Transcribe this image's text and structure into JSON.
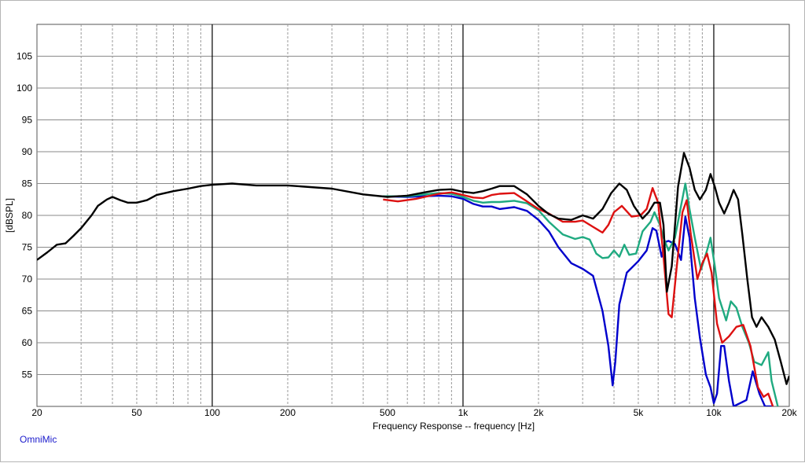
{
  "brand": {
    "label": "OmniMic",
    "color": "#1a1acc"
  },
  "chart_data": {
    "type": "line",
    "title": "",
    "xlabel": "Frequency Response -- frequency [Hz]",
    "ylabel": "[dBSPL]",
    "xscale": "log",
    "xlim": [
      20,
      20000
    ],
    "ylim": [
      50,
      110
    ],
    "grid": true,
    "legend": "none",
    "x_ticks": [
      {
        "value": 20,
        "label": "20"
      },
      {
        "value": 50,
        "label": "50"
      },
      {
        "value": 100,
        "label": "100"
      },
      {
        "value": 200,
        "label": "200"
      },
      {
        "value": 500,
        "label": "500"
      },
      {
        "value": 1000,
        "label": "1k"
      },
      {
        "value": 2000,
        "label": "2k"
      },
      {
        "value": 5000,
        "label": "5k"
      },
      {
        "value": 10000,
        "label": "10k"
      },
      {
        "value": 20000,
        "label": "20k"
      }
    ],
    "y_ticks": [
      55,
      60,
      65,
      70,
      75,
      80,
      85,
      90,
      95,
      100,
      105
    ],
    "series": [
      {
        "color": "#0000cc",
        "points": [
          [
            480,
            83.0
          ],
          [
            600,
            82.9
          ],
          [
            700,
            83.0
          ],
          [
            800,
            83.1
          ],
          [
            900,
            83.0
          ],
          [
            1000,
            82.6
          ],
          [
            1100,
            81.8
          ],
          [
            1200,
            81.4
          ],
          [
            1300,
            81.4
          ],
          [
            1400,
            81.0
          ],
          [
            1600,
            81.3
          ],
          [
            1800,
            80.7
          ],
          [
            2000,
            79.3
          ],
          [
            2200,
            77.5
          ],
          [
            2400,
            75.0
          ],
          [
            2700,
            72.5
          ],
          [
            3000,
            71.6
          ],
          [
            3300,
            70.5
          ],
          [
            3600,
            65.0
          ],
          [
            3800,
            59.5
          ],
          [
            3950,
            53.3
          ],
          [
            4050,
            57.0
          ],
          [
            4200,
            66.0
          ],
          [
            4500,
            71.0
          ],
          [
            5000,
            72.8
          ],
          [
            5400,
            74.5
          ],
          [
            5700,
            78.0
          ],
          [
            5900,
            77.6
          ],
          [
            6200,
            73.5
          ],
          [
            6400,
            75.8
          ],
          [
            6600,
            76.0
          ],
          [
            7000,
            75.5
          ],
          [
            7400,
            73.0
          ],
          [
            7700,
            79.8
          ],
          [
            8000,
            76.5
          ],
          [
            8400,
            67.0
          ],
          [
            8800,
            60.8
          ],
          [
            9300,
            55.0
          ],
          [
            9700,
            53.0
          ],
          [
            10000,
            50.5
          ],
          [
            10300,
            52.0
          ],
          [
            10700,
            59.5
          ],
          [
            11000,
            59.5
          ],
          [
            11500,
            54.0
          ],
          [
            12000,
            50.0
          ],
          [
            13500,
            51.0
          ],
          [
            14300,
            55.5
          ],
          [
            15200,
            52.0
          ],
          [
            16000,
            50.0
          ],
          [
            17000,
            50.0
          ]
        ]
      },
      {
        "color": "#1faa80",
        "points": [
          [
            480,
            83.0
          ],
          [
            600,
            83.0
          ],
          [
            700,
            83.3
          ],
          [
            800,
            83.5
          ],
          [
            900,
            83.4
          ],
          [
            1000,
            82.9
          ],
          [
            1100,
            82.3
          ],
          [
            1200,
            82.0
          ],
          [
            1300,
            82.1
          ],
          [
            1400,
            82.1
          ],
          [
            1600,
            82.3
          ],
          [
            1800,
            81.9
          ],
          [
            2000,
            80.8
          ],
          [
            2200,
            79.0
          ],
          [
            2500,
            77.0
          ],
          [
            2800,
            76.3
          ],
          [
            3000,
            76.6
          ],
          [
            3200,
            76.2
          ],
          [
            3400,
            74.0
          ],
          [
            3600,
            73.3
          ],
          [
            3800,
            73.4
          ],
          [
            4000,
            74.5
          ],
          [
            4200,
            73.5
          ],
          [
            4400,
            75.4
          ],
          [
            4600,
            73.8
          ],
          [
            4900,
            74.0
          ],
          [
            5200,
            77.5
          ],
          [
            5600,
            79.0
          ],
          [
            5800,
            80.5
          ],
          [
            6100,
            78.5
          ],
          [
            6300,
            76.5
          ],
          [
            6600,
            74.5
          ],
          [
            7000,
            76.5
          ],
          [
            7400,
            81.5
          ],
          [
            7700,
            85.0
          ],
          [
            8000,
            81.0
          ],
          [
            8400,
            76.5
          ],
          [
            8900,
            71.5
          ],
          [
            9400,
            74.5
          ],
          [
            9700,
            76.5
          ],
          [
            10100,
            72.0
          ],
          [
            10500,
            67.0
          ],
          [
            10900,
            65.0
          ],
          [
            11200,
            63.5
          ],
          [
            11700,
            66.5
          ],
          [
            12300,
            65.5
          ],
          [
            13000,
            62.5
          ],
          [
            13800,
            60.0
          ],
          [
            14500,
            57.0
          ],
          [
            15500,
            56.5
          ],
          [
            16500,
            58.5
          ],
          [
            17000,
            54.0
          ],
          [
            18000,
            50.0
          ]
        ]
      },
      {
        "color": "#dd1111",
        "points": [
          [
            480,
            82.5
          ],
          [
            550,
            82.2
          ],
          [
            650,
            82.6
          ],
          [
            800,
            83.4
          ],
          [
            900,
            83.6
          ],
          [
            1000,
            83.2
          ],
          [
            1100,
            82.8
          ],
          [
            1200,
            82.7
          ],
          [
            1300,
            83.2
          ],
          [
            1400,
            83.4
          ],
          [
            1600,
            83.5
          ],
          [
            1800,
            82.2
          ],
          [
            2000,
            81.0
          ],
          [
            2200,
            80.3
          ],
          [
            2500,
            79.0
          ],
          [
            2800,
            79.0
          ],
          [
            3000,
            79.2
          ],
          [
            3300,
            78.2
          ],
          [
            3600,
            77.3
          ],
          [
            3800,
            78.5
          ],
          [
            4000,
            80.5
          ],
          [
            4300,
            81.5
          ],
          [
            4700,
            79.8
          ],
          [
            5100,
            80.0
          ],
          [
            5400,
            81.0
          ],
          [
            5700,
            84.3
          ],
          [
            6000,
            82.0
          ],
          [
            6300,
            73.5
          ],
          [
            6600,
            64.5
          ],
          [
            6800,
            64.0
          ],
          [
            7100,
            71.5
          ],
          [
            7500,
            80.5
          ],
          [
            7800,
            82.4
          ],
          [
            8100,
            77.0
          ],
          [
            8600,
            70.0
          ],
          [
            9000,
            72.5
          ],
          [
            9400,
            74.0
          ],
          [
            9800,
            71.0
          ],
          [
            10300,
            63.0
          ],
          [
            10800,
            60.0
          ],
          [
            11500,
            61.0
          ],
          [
            12300,
            62.5
          ],
          [
            13100,
            62.8
          ],
          [
            14000,
            59.5
          ],
          [
            15000,
            53.0
          ],
          [
            15800,
            51.5
          ],
          [
            16500,
            52.0
          ],
          [
            17200,
            50.0
          ]
        ]
      },
      {
        "color": "#000000",
        "points": [
          [
            20,
            73.0
          ],
          [
            22,
            74.2
          ],
          [
            24,
            75.4
          ],
          [
            26,
            75.6
          ],
          [
            28,
            76.8
          ],
          [
            30,
            78.0
          ],
          [
            33,
            80.0
          ],
          [
            35,
            81.5
          ],
          [
            38,
            82.5
          ],
          [
            40,
            82.9
          ],
          [
            43,
            82.4
          ],
          [
            46,
            82.0
          ],
          [
            50,
            82.0
          ],
          [
            55,
            82.4
          ],
          [
            60,
            83.2
          ],
          [
            70,
            83.8
          ],
          [
            80,
            84.2
          ],
          [
            90,
            84.6
          ],
          [
            100,
            84.8
          ],
          [
            120,
            85.0
          ],
          [
            150,
            84.7
          ],
          [
            200,
            84.7
          ],
          [
            300,
            84.2
          ],
          [
            400,
            83.3
          ],
          [
            500,
            82.9
          ],
          [
            600,
            83.1
          ],
          [
            700,
            83.6
          ],
          [
            800,
            84.0
          ],
          [
            900,
            84.1
          ],
          [
            1000,
            83.7
          ],
          [
            1100,
            83.5
          ],
          [
            1200,
            83.8
          ],
          [
            1300,
            84.2
          ],
          [
            1400,
            84.6
          ],
          [
            1600,
            84.6
          ],
          [
            1800,
            83.3
          ],
          [
            2000,
            81.5
          ],
          [
            2200,
            80.2
          ],
          [
            2400,
            79.5
          ],
          [
            2700,
            79.3
          ],
          [
            3000,
            80.0
          ],
          [
            3300,
            79.5
          ],
          [
            3600,
            81.0
          ],
          [
            3900,
            83.5
          ],
          [
            4200,
            85.0
          ],
          [
            4500,
            84.0
          ],
          [
            4800,
            81.5
          ],
          [
            5200,
            79.5
          ],
          [
            5500,
            80.5
          ],
          [
            5800,
            82.0
          ],
          [
            6100,
            82.0
          ],
          [
            6300,
            78.5
          ],
          [
            6500,
            68.0
          ],
          [
            6800,
            72.0
          ],
          [
            7200,
            84.5
          ],
          [
            7600,
            89.8
          ],
          [
            8000,
            87.5
          ],
          [
            8400,
            84.0
          ],
          [
            8800,
            82.5
          ],
          [
            9300,
            84.0
          ],
          [
            9700,
            86.5
          ],
          [
            10100,
            84.5
          ],
          [
            10500,
            82.0
          ],
          [
            11000,
            80.3
          ],
          [
            11500,
            82.0
          ],
          [
            12000,
            84.0
          ],
          [
            12500,
            82.5
          ],
          [
            13000,
            77.0
          ],
          [
            13600,
            70.0
          ],
          [
            14200,
            64.0
          ],
          [
            14800,
            62.5
          ],
          [
            15500,
            64.0
          ],
          [
            16500,
            62.5
          ],
          [
            17500,
            60.5
          ],
          [
            18500,
            57.0
          ],
          [
            19500,
            53.5
          ],
          [
            20000,
            54.8
          ]
        ]
      }
    ]
  }
}
